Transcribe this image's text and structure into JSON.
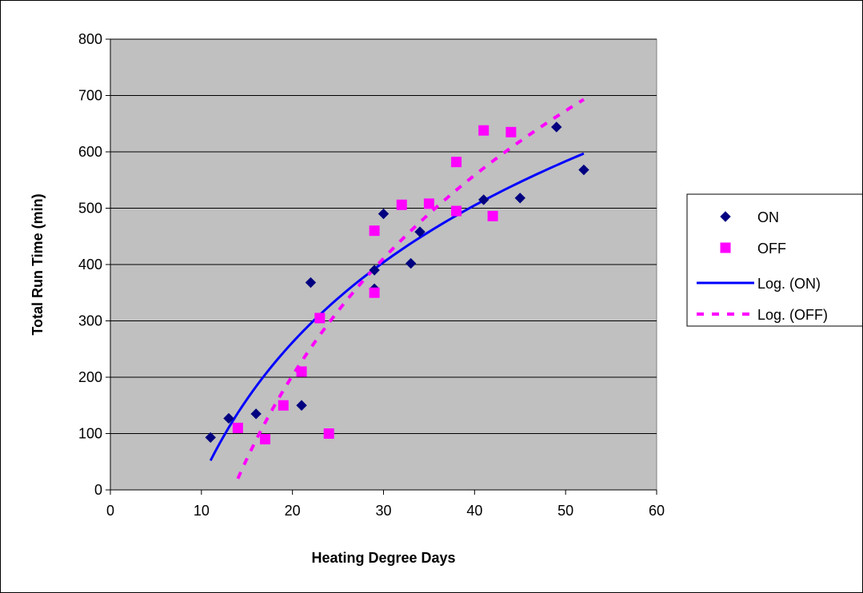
{
  "chart_data": {
    "type": "scatter",
    "xlabel": "Heating Degree Days",
    "ylabel": "Total Run Time (min)",
    "xlim": [
      0,
      60
    ],
    "ylim": [
      0,
      800
    ],
    "x_ticks": [
      0,
      10,
      20,
      30,
      40,
      50,
      60
    ],
    "y_ticks": [
      0,
      100,
      200,
      300,
      400,
      500,
      600,
      700,
      800
    ],
    "grid": "horizontal",
    "plot_background": "#c0c0c0",
    "legend_position": "right",
    "series": [
      {
        "name": "ON",
        "marker": "diamond",
        "color": "#000080",
        "points": [
          {
            "x": 11,
            "y": 93
          },
          {
            "x": 13,
            "y": 127
          },
          {
            "x": 16,
            "y": 135
          },
          {
            "x": 21,
            "y": 150
          },
          {
            "x": 22,
            "y": 368
          },
          {
            "x": 29,
            "y": 357
          },
          {
            "x": 29,
            "y": 390
          },
          {
            "x": 30,
            "y": 490
          },
          {
            "x": 33,
            "y": 402
          },
          {
            "x": 34,
            "y": 458
          },
          {
            "x": 41,
            "y": 515
          },
          {
            "x": 45,
            "y": 518
          },
          {
            "x": 49,
            "y": 644
          },
          {
            "x": 52,
            "y": 568
          }
        ]
      },
      {
        "name": "OFF",
        "marker": "square",
        "color": "#ff00ff",
        "points": [
          {
            "x": 14,
            "y": 110
          },
          {
            "x": 17,
            "y": 90
          },
          {
            "x": 19,
            "y": 150
          },
          {
            "x": 21,
            "y": 210
          },
          {
            "x": 23,
            "y": 305
          },
          {
            "x": 24,
            "y": 100
          },
          {
            "x": 29,
            "y": 460
          },
          {
            "x": 29,
            "y": 350
          },
          {
            "x": 32,
            "y": 506
          },
          {
            "x": 35,
            "y": 508
          },
          {
            "x": 38,
            "y": 582
          },
          {
            "x": 38,
            "y": 495
          },
          {
            "x": 41,
            "y": 638
          },
          {
            "x": 42,
            "y": 486
          },
          {
            "x": 44,
            "y": 635
          }
        ]
      },
      {
        "name": "Log. (ON)",
        "type": "trendline",
        "model": "logarithmic",
        "style": "solid",
        "color": "#0000ff",
        "x_range": [
          11,
          52
        ],
        "endpoints": [
          {
            "x": 11,
            "y": 52
          },
          {
            "x": 52,
            "y": 597
          }
        ]
      },
      {
        "name": "Log. (OFF)",
        "type": "trendline",
        "model": "logarithmic",
        "style": "dashed",
        "color": "#ff00ff",
        "x_range": [
          14,
          52
        ],
        "endpoints": [
          {
            "x": 14,
            "y": 20
          },
          {
            "x": 52,
            "y": 693
          }
        ]
      }
    ]
  }
}
